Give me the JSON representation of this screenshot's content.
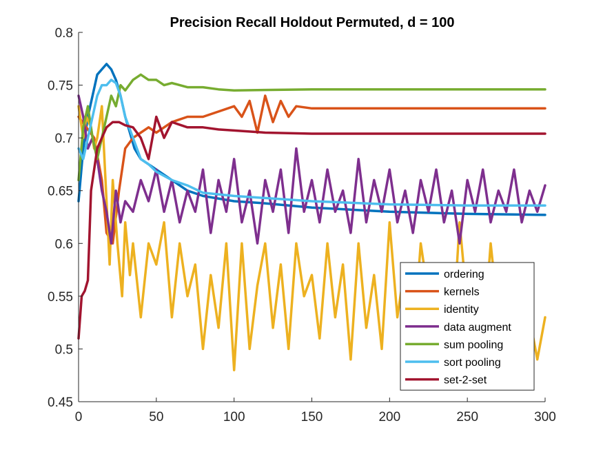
{
  "chart_data": {
    "type": "line",
    "title": "Precision Recall Holdout Permuted, d = 100",
    "xlabel": "",
    "ylabel": "",
    "xlim": [
      0,
      300
    ],
    "ylim": [
      0.45,
      0.8
    ],
    "xticks": [
      0,
      50,
      100,
      150,
      200,
      250,
      300
    ],
    "xtick_labels": [
      "0",
      "50",
      "100",
      "150",
      "200",
      "250",
      "300"
    ],
    "yticks": [
      0.45,
      0.5,
      0.55,
      0.6,
      0.65,
      0.7,
      0.75,
      0.8
    ],
    "ytick_labels": [
      "0.45",
      "0.5",
      "0.55",
      "0.6",
      "0.65",
      "0.7",
      "0.75",
      "0.8"
    ],
    "grid": false,
    "legend_position": "bottom-right",
    "series": [
      {
        "name": "ordering",
        "color": "#0072BD",
        "x": [
          0,
          3,
          6,
          9,
          12,
          15,
          18,
          21,
          24,
          27,
          30,
          33,
          36,
          40,
          45,
          50,
          60,
          70,
          80,
          100,
          120,
          150,
          200,
          250,
          300
        ],
        "y": [
          0.64,
          0.69,
          0.72,
          0.74,
          0.76,
          0.765,
          0.77,
          0.765,
          0.755,
          0.74,
          0.72,
          0.705,
          0.69,
          0.68,
          0.675,
          0.67,
          0.66,
          0.65,
          0.645,
          0.64,
          0.638,
          0.634,
          0.63,
          0.628,
          0.627
        ]
      },
      {
        "name": "kernels",
        "color": "#D95319",
        "x": [
          0,
          5,
          10,
          15,
          18,
          22,
          26,
          30,
          35,
          40,
          45,
          50,
          60,
          70,
          80,
          90,
          100,
          105,
          110,
          115,
          120,
          125,
          130,
          135,
          140,
          150,
          200,
          250,
          300
        ],
        "y": [
          0.72,
          0.71,
          0.7,
          0.66,
          0.61,
          0.6,
          0.65,
          0.69,
          0.7,
          0.705,
          0.71,
          0.705,
          0.715,
          0.72,
          0.72,
          0.725,
          0.73,
          0.72,
          0.735,
          0.705,
          0.74,
          0.715,
          0.735,
          0.72,
          0.73,
          0.728,
          0.728,
          0.728,
          0.728
        ]
      },
      {
        "name": "identity",
        "color": "#EDB120",
        "x": [
          0,
          3,
          5,
          8,
          10,
          12,
          15,
          18,
          20,
          22,
          25,
          28,
          30,
          33,
          35,
          40,
          45,
          50,
          55,
          60,
          65,
          70,
          75,
          80,
          85,
          90,
          95,
          100,
          105,
          110,
          115,
          120,
          125,
          130,
          135,
          140,
          145,
          150,
          155,
          160,
          165,
          170,
          175,
          180,
          185,
          190,
          195,
          200,
          205,
          210,
          215,
          220,
          225,
          230,
          235,
          240,
          245,
          250,
          255,
          260,
          265,
          270,
          275,
          280,
          285,
          290,
          295,
          300
        ],
        "y": [
          0.73,
          0.7,
          0.72,
          0.71,
          0.69,
          0.7,
          0.73,
          0.64,
          0.58,
          0.66,
          0.6,
          0.55,
          0.62,
          0.57,
          0.6,
          0.53,
          0.6,
          0.58,
          0.62,
          0.53,
          0.6,
          0.55,
          0.58,
          0.5,
          0.57,
          0.52,
          0.6,
          0.48,
          0.6,
          0.5,
          0.56,
          0.6,
          0.52,
          0.58,
          0.5,
          0.6,
          0.55,
          0.57,
          0.51,
          0.6,
          0.53,
          0.58,
          0.49,
          0.6,
          0.52,
          0.57,
          0.5,
          0.62,
          0.53,
          0.58,
          0.5,
          0.6,
          0.55,
          0.52,
          0.58,
          0.5,
          0.62,
          0.54,
          0.57,
          0.5,
          0.6,
          0.53,
          0.58,
          0.5,
          0.56,
          0.53,
          0.49,
          0.53
        ]
      },
      {
        "name": "data augment",
        "color": "#7E2F8E",
        "x": [
          0,
          3,
          6,
          9,
          12,
          15,
          18,
          21,
          24,
          27,
          30,
          35,
          40,
          45,
          50,
          55,
          60,
          65,
          70,
          75,
          80,
          85,
          90,
          95,
          100,
          105,
          110,
          115,
          120,
          125,
          130,
          135,
          140,
          145,
          150,
          155,
          160,
          165,
          170,
          175,
          180,
          185,
          190,
          195,
          200,
          205,
          210,
          215,
          220,
          225,
          230,
          235,
          240,
          245,
          250,
          255,
          260,
          265,
          270,
          275,
          280,
          285,
          290,
          295,
          300
        ],
        "y": [
          0.74,
          0.72,
          0.69,
          0.7,
          0.68,
          0.65,
          0.63,
          0.6,
          0.65,
          0.62,
          0.64,
          0.63,
          0.66,
          0.64,
          0.67,
          0.63,
          0.66,
          0.62,
          0.65,
          0.63,
          0.67,
          0.61,
          0.66,
          0.63,
          0.68,
          0.62,
          0.65,
          0.6,
          0.66,
          0.63,
          0.67,
          0.61,
          0.69,
          0.63,
          0.66,
          0.62,
          0.67,
          0.63,
          0.65,
          0.61,
          0.68,
          0.62,
          0.66,
          0.63,
          0.67,
          0.62,
          0.65,
          0.61,
          0.66,
          0.63,
          0.67,
          0.62,
          0.65,
          0.6,
          0.66,
          0.63,
          0.67,
          0.62,
          0.65,
          0.63,
          0.67,
          0.62,
          0.65,
          0.63,
          0.655
        ]
      },
      {
        "name": "sum pooling",
        "color": "#77AC30",
        "x": [
          0,
          3,
          6,
          9,
          12,
          15,
          18,
          21,
          24,
          27,
          30,
          35,
          40,
          45,
          50,
          55,
          60,
          70,
          80,
          90,
          100,
          150,
          200,
          250,
          300
        ],
        "y": [
          0.66,
          0.71,
          0.73,
          0.7,
          0.68,
          0.7,
          0.72,
          0.74,
          0.73,
          0.75,
          0.745,
          0.755,
          0.76,
          0.755,
          0.755,
          0.75,
          0.752,
          0.748,
          0.748,
          0.746,
          0.745,
          0.746,
          0.746,
          0.746,
          0.746
        ]
      },
      {
        "name": "sort pooling",
        "color": "#4DBEEE",
        "x": [
          0,
          3,
          6,
          9,
          12,
          15,
          18,
          21,
          24,
          27,
          30,
          35,
          40,
          45,
          50,
          60,
          70,
          80,
          100,
          150,
          200,
          250,
          300
        ],
        "y": [
          0.69,
          0.68,
          0.7,
          0.72,
          0.74,
          0.75,
          0.75,
          0.755,
          0.752,
          0.74,
          0.72,
          0.7,
          0.68,
          0.675,
          0.668,
          0.66,
          0.655,
          0.648,
          0.645,
          0.64,
          0.637,
          0.636,
          0.636
        ]
      },
      {
        "name": "set-2-set",
        "color": "#A2142F",
        "x": [
          0,
          2,
          4,
          6,
          8,
          10,
          12,
          15,
          18,
          22,
          26,
          30,
          35,
          40,
          45,
          50,
          55,
          60,
          70,
          80,
          90,
          100,
          120,
          150,
          200,
          250,
          300
        ],
        "y": [
          0.51,
          0.55,
          0.555,
          0.565,
          0.65,
          0.67,
          0.69,
          0.7,
          0.71,
          0.715,
          0.715,
          0.712,
          0.71,
          0.7,
          0.68,
          0.72,
          0.7,
          0.715,
          0.71,
          0.71,
          0.708,
          0.707,
          0.705,
          0.704,
          0.704,
          0.704,
          0.704
        ]
      }
    ]
  }
}
